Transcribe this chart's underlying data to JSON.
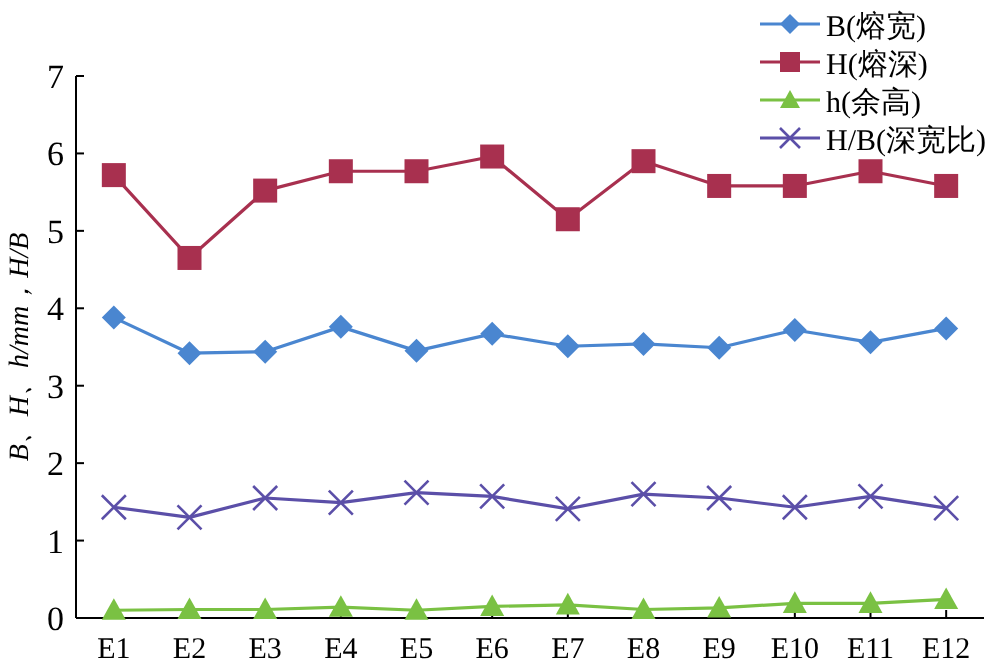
{
  "chart_data": {
    "type": "line",
    "ylabel": "B、H、h/mm，H/B",
    "categories": [
      "E1",
      "E2",
      "E3",
      "E4",
      "E5",
      "E6",
      "E7",
      "E8",
      "E9",
      "E10",
      "E11",
      "E12"
    ],
    "series": [
      {
        "name": "B(熔宽)",
        "color": "#4a86d0",
        "marker": "diamond",
        "values": [
          3.88,
          3.42,
          3.44,
          3.76,
          3.45,
          3.67,
          3.51,
          3.54,
          3.49,
          3.72,
          3.56,
          3.74
        ]
      },
      {
        "name": "H(熔深)",
        "color": "#a8304f",
        "marker": "square",
        "values": [
          5.72,
          4.65,
          5.52,
          5.77,
          5.77,
          5.96,
          5.15,
          5.9,
          5.58,
          5.58,
          5.77,
          5.58
        ]
      },
      {
        "name": "h(余高)",
        "color": "#7ac143",
        "marker": "triangle",
        "values": [
          0.1,
          0.11,
          0.11,
          0.14,
          0.1,
          0.15,
          0.17,
          0.11,
          0.13,
          0.19,
          0.19,
          0.24
        ]
      },
      {
        "name": "H/B(深宽比)",
        "color": "#5b4fa8",
        "marker": "cross",
        "values": [
          1.43,
          1.3,
          1.55,
          1.49,
          1.62,
          1.57,
          1.41,
          1.6,
          1.55,
          1.43,
          1.57,
          1.42
        ]
      }
    ],
    "ylim": [
      0,
      7
    ],
    "yticks": [
      0,
      1,
      2,
      3,
      4,
      5,
      6,
      7
    ],
    "grid": false,
    "legend": "top right",
    "line_style": "solid"
  }
}
